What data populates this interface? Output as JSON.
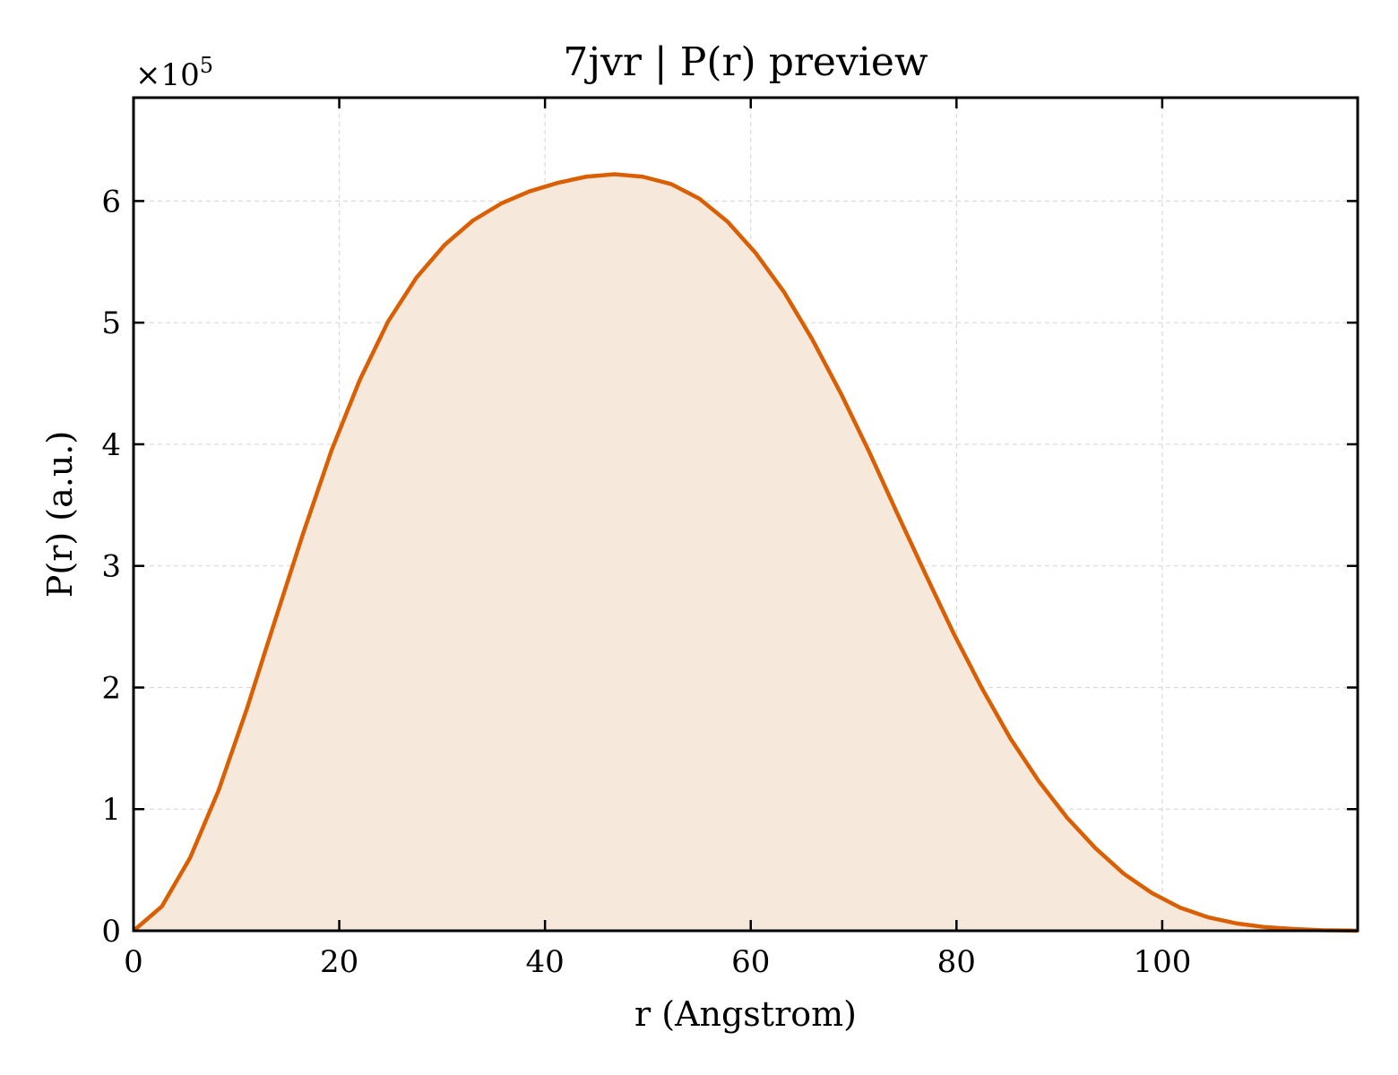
{
  "chart_data": {
    "type": "area",
    "title": "7jvr | P(r) preview",
    "xlabel": "r (Angstrom)",
    "ylabel": "P(r) (a.u.)",
    "y_multiplier": "×10",
    "y_multiplier_exp": "5",
    "xlim": [
      0,
      119
    ],
    "ylim": [
      0,
      6.85
    ],
    "x_ticks": [
      0,
      20,
      40,
      60,
      80,
      100
    ],
    "y_ticks": [
      0,
      1,
      2,
      3,
      4,
      5,
      6
    ],
    "grid": true,
    "series": [
      {
        "x": [
          0,
          2.75,
          5.5,
          8.25,
          11,
          13.75,
          16.5,
          19.25,
          22,
          24.75,
          27.5,
          30.25,
          33,
          35.75,
          38.5,
          41.25,
          44,
          46.75,
          49.5,
          52.25,
          55,
          57.75,
          60.5,
          63.25,
          66,
          68.75,
          71.5,
          74.25,
          77,
          79.75,
          82.5,
          85.25,
          88,
          90.75,
          93.5,
          96.25,
          99,
          101.75,
          104.5,
          107.25,
          110,
          112.75,
          115.5,
          118.25,
          119
        ],
        "y": [
          0,
          0.2,
          0.6,
          1.15,
          1.82,
          2.55,
          3.27,
          3.95,
          4.53,
          5.01,
          5.37,
          5.64,
          5.84,
          5.98,
          6.08,
          6.15,
          6.2,
          6.22,
          6.2,
          6.14,
          6.02,
          5.83,
          5.57,
          5.25,
          4.86,
          4.42,
          3.94,
          3.43,
          2.93,
          2.44,
          1.99,
          1.58,
          1.23,
          0.93,
          0.68,
          0.47,
          0.31,
          0.19,
          0.11,
          0.06,
          0.03,
          0.015,
          0.005,
          0.002,
          0
        ]
      }
    ],
    "colors": {
      "line": "#d95f02",
      "fill": "#f7e8dc",
      "grid": "#d9d9d9"
    }
  }
}
